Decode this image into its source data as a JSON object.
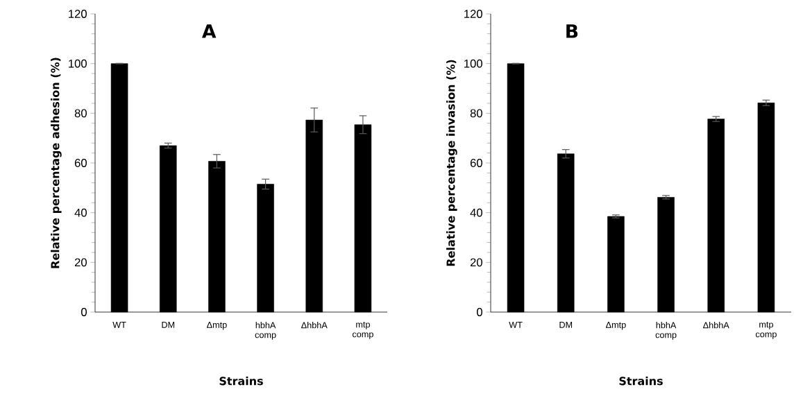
{
  "chart_data": [
    {
      "type": "bar",
      "title": "A",
      "xlabel": "Strains",
      "ylabel": "Relative percentage adhesion (%)",
      "categories": [
        "WT",
        "DM",
        "Δmtp",
        "hbhA comp",
        "ΔhbhA",
        "mtp comp"
      ],
      "values": [
        100,
        67.0,
        60.7,
        51.5,
        77.3,
        75.4
      ],
      "errors": [
        0.1,
        1.0,
        2.7,
        2.0,
        4.8,
        3.6
      ],
      "color": "#000000",
      "ylim": [
        0,
        120
      ],
      "yticks": [
        0,
        20,
        40,
        60,
        80,
        100,
        120
      ]
    },
    {
      "type": "bar",
      "title": "B",
      "xlabel": "Strains",
      "ylabel": "Relative percentage invasion (%)",
      "categories": [
        "WT",
        "DM",
        "Δmtp",
        "hbhA comp",
        "ΔhbhA",
        "mtp comp"
      ],
      "values": [
        100,
        63.7,
        38.5,
        46.2,
        77.7,
        84.2
      ],
      "errors": [
        0.1,
        1.7,
        0.6,
        0.7,
        1.0,
        1.1
      ],
      "color": "#000000",
      "ylim": [
        0,
        120
      ],
      "yticks": [
        0,
        20,
        40,
        60,
        80,
        100,
        120
      ]
    }
  ]
}
